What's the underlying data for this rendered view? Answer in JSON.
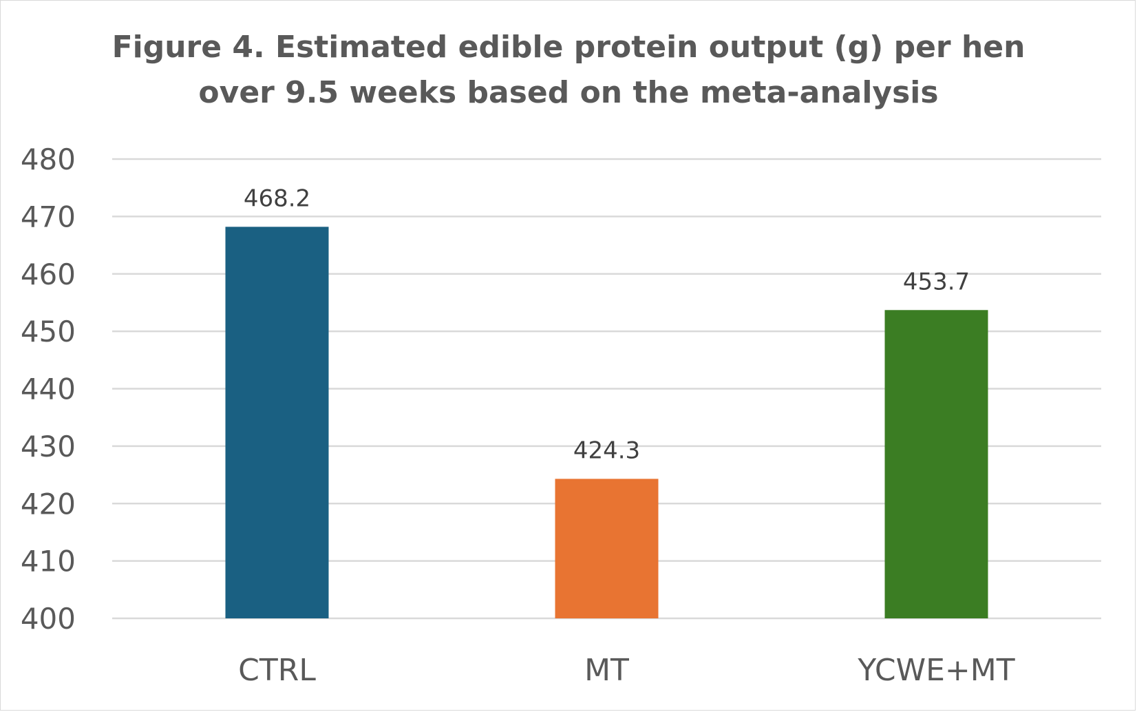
{
  "chart_data": {
    "type": "bar",
    "title_lines": [
      "Figure 4. Estimated edible protein output (g) per hen",
      "over 9.5 weeks based on the meta-analysis"
    ],
    "categories": [
      "CTRL",
      "MT",
      "YCWE+MT"
    ],
    "values": [
      468.2,
      424.3,
      453.7
    ],
    "data_labels": [
      "468.2",
      "424.3",
      "453.7"
    ],
    "colors": [
      "#1a6082",
      "#e87432",
      "#3b7d23"
    ],
    "ylim": [
      400,
      480
    ],
    "yticks": [
      400,
      410,
      420,
      430,
      440,
      450,
      460,
      470,
      480
    ],
    "xlabel": "",
    "ylabel": "",
    "grid": true,
    "legend": "none"
  }
}
